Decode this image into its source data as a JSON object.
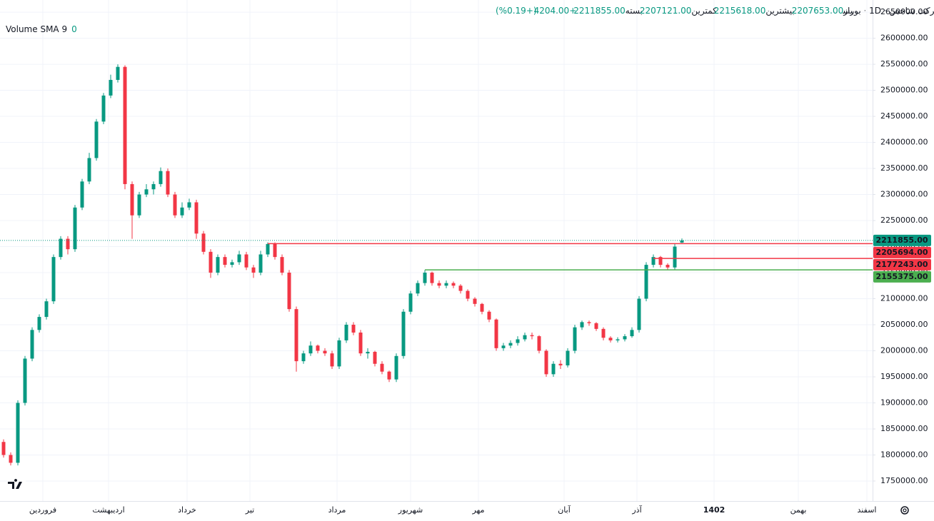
{
  "chart_data": {
    "type": "candlestick",
    "header": {
      "symbol": "شرکت شاخص",
      "interval": "1D",
      "exchange": "بورس",
      "open_name": "باز",
      "open": "2207653.00",
      "high_name": "بیشترین",
      "high": "2215618.00",
      "low_name": "کمترین",
      "low": "2207121.00",
      "close_name": "بسته",
      "close": "2211855.00",
      "change": "+4204.00",
      "change_pct": "(+0.19%)"
    },
    "indicator": {
      "name": "Volume SMA 9",
      "value": 0
    },
    "up_color": "#089981",
    "down_color": "#f23645",
    "ylim": [
      1711600,
      2673400
    ],
    "yticks": [
      {
        "value": 1750000,
        "label": "1750000.00"
      },
      {
        "value": 1800000,
        "label": "1800000.00"
      },
      {
        "value": 1850000,
        "label": "1850000.00"
      },
      {
        "value": 1900000,
        "label": "1900000.00"
      },
      {
        "value": 1950000,
        "label": "1950000.00"
      },
      {
        "value": 2000000,
        "label": "2000000.00"
      },
      {
        "value": 2050000,
        "label": "2050000.00"
      },
      {
        "value": 2100000,
        "label": "2100000.00"
      },
      {
        "value": 2150000,
        "label": "2150000.00"
      },
      {
        "value": 2200000,
        "label": "2200000.00"
      },
      {
        "value": 2250000,
        "label": "2250000.00"
      },
      {
        "value": 2300000,
        "label": "2300000.00"
      },
      {
        "value": 2350000,
        "label": "2350000.00"
      },
      {
        "value": 2400000,
        "label": "2400000.00"
      },
      {
        "value": 2450000,
        "label": "2450000.00"
      },
      {
        "value": 2500000,
        "label": "2500000.00"
      },
      {
        "value": 2550000,
        "label": "2550000.00"
      },
      {
        "value": 2600000,
        "label": "2600000.00"
      },
      {
        "value": 2650000,
        "label": "2650000.00"
      }
    ],
    "x_labels": [
      "فروردین",
      "اردیبهشت",
      "خرداد",
      "تیر",
      "مرداد",
      "شهریور",
      "مهر",
      "آبان",
      "آذر",
      "1402",
      "بهمن",
      "اسفند"
    ],
    "last_price_label": "2211855.00",
    "levels": [
      {
        "value": 2205694,
        "label": "2205694.00",
        "color": "#f23645"
      },
      {
        "value": 2177243,
        "label": "2177243.00",
        "color": "#f23645"
      },
      {
        "value": 2155375,
        "label": "2155375.00",
        "color": "#4caf50"
      }
    ],
    "candles": [
      [
        1825000,
        1830000,
        1795000,
        1800000
      ],
      [
        1800000,
        1805000,
        1780000,
        1785000
      ],
      [
        1785000,
        1905000,
        1780000,
        1900000
      ],
      [
        1900000,
        1990000,
        1895000,
        1985000
      ],
      [
        1985000,
        2045000,
        1980000,
        2040000
      ],
      [
        2040000,
        2070000,
        2035000,
        2065000
      ],
      [
        2065000,
        2100000,
        2060000,
        2095000
      ],
      [
        2095000,
        2185000,
        2090000,
        2180000
      ],
      [
        2180000,
        2220000,
        2175000,
        2215000
      ],
      [
        2215000,
        2220000,
        2185000,
        2195000
      ],
      [
        2195000,
        2280000,
        2190000,
        2275000
      ],
      [
        2275000,
        2330000,
        2270000,
        2325000
      ],
      [
        2325000,
        2380000,
        2320000,
        2370000
      ],
      [
        2370000,
        2445000,
        2365000,
        2440000
      ],
      [
        2440000,
        2495000,
        2435000,
        2490000
      ],
      [
        2490000,
        2530000,
        2485000,
        2520000
      ],
      [
        2520000,
        2550000,
        2515000,
        2545000
      ],
      [
        2545000,
        2548000,
        2310000,
        2320000
      ],
      [
        2320000,
        2325000,
        2215000,
        2260000
      ],
      [
        2260000,
        2305000,
        2255000,
        2300000
      ],
      [
        2300000,
        2320000,
        2295000,
        2310000
      ],
      [
        2310000,
        2325000,
        2300000,
        2320000
      ],
      [
        2320000,
        2352000,
        2315000,
        2345000
      ],
      [
        2345000,
        2350000,
        2295000,
        2300000
      ],
      [
        2300000,
        2305000,
        2255000,
        2260000
      ],
      [
        2260000,
        2285000,
        2255000,
        2275000
      ],
      [
        2275000,
        2292000,
        2270000,
        2285000
      ],
      [
        2285000,
        2290000,
        2215000,
        2225000
      ],
      [
        2225000,
        2230000,
        2185000,
        2190000
      ],
      [
        2190000,
        2195000,
        2140000,
        2150000
      ],
      [
        2150000,
        2185000,
        2145000,
        2180000
      ],
      [
        2180000,
        2185000,
        2160000,
        2165000
      ],
      [
        2165000,
        2175000,
        2160000,
        2170000
      ],
      [
        2170000,
        2192000,
        2165000,
        2185000
      ],
      [
        2185000,
        2190000,
        2155000,
        2160000
      ],
      [
        2160000,
        2165000,
        2140000,
        2150000
      ],
      [
        2150000,
        2192000,
        2145000,
        2185000
      ],
      [
        2185000,
        2208000,
        2180000,
        2205000
      ],
      [
        2205000,
        2208000,
        2175000,
        2180000
      ],
      [
        2180000,
        2185000,
        2145000,
        2150000
      ],
      [
        2150000,
        2155000,
        2075000,
        2080000
      ],
      [
        2080000,
        2085000,
        1960000,
        1980000
      ],
      [
        1980000,
        2000000,
        1975000,
        1995000
      ],
      [
        1995000,
        2018000,
        1990000,
        2010000
      ],
      [
        2010000,
        2012000,
        1995000,
        2000000
      ],
      [
        2000000,
        2005000,
        1990000,
        1995000
      ],
      [
        1995000,
        2000000,
        1965000,
        1970000
      ],
      [
        1970000,
        2025000,
        1965000,
        2020000
      ],
      [
        2020000,
        2055000,
        2015000,
        2050000
      ],
      [
        2050000,
        2055000,
        2030000,
        2035000
      ],
      [
        2035000,
        2040000,
        1990000,
        1995000
      ],
      [
        1995000,
        2005000,
        1985000,
        1998000
      ],
      [
        1998000,
        2000000,
        1970000,
        1975000
      ],
      [
        1975000,
        1980000,
        1955000,
        1960000
      ],
      [
        1960000,
        1962000,
        1940000,
        1945000
      ],
      [
        1945000,
        1995000,
        1940000,
        1990000
      ],
      [
        1990000,
        2080000,
        1985000,
        2075000
      ],
      [
        2075000,
        2115000,
        2070000,
        2110000
      ],
      [
        2110000,
        2135000,
        2105000,
        2130000
      ],
      [
        2130000,
        2155000,
        2125000,
        2150000
      ],
      [
        2150000,
        2152000,
        2125000,
        2130000
      ],
      [
        2130000,
        2135000,
        2120000,
        2125000
      ],
      [
        2125000,
        2135000,
        2120000,
        2130000
      ],
      [
        2130000,
        2133000,
        2120000,
        2125000
      ],
      [
        2125000,
        2128000,
        2110000,
        2115000
      ],
      [
        2115000,
        2118000,
        2095000,
        2100000
      ],
      [
        2100000,
        2103000,
        2085000,
        2090000
      ],
      [
        2090000,
        2092000,
        2070000,
        2075000
      ],
      [
        2075000,
        2078000,
        2055000,
        2060000
      ],
      [
        2060000,
        2062000,
        2000000,
        2005000
      ],
      [
        2005000,
        2015000,
        2000000,
        2010000
      ],
      [
        2010000,
        2020000,
        2005000,
        2015000
      ],
      [
        2015000,
        2028000,
        2010000,
        2022000
      ],
      [
        2022000,
        2035000,
        2018000,
        2030000
      ],
      [
        2030000,
        2035000,
        2022000,
        2028000
      ],
      [
        2028000,
        2030000,
        1995000,
        2000000
      ],
      [
        2000000,
        2003000,
        1950000,
        1955000
      ],
      [
        1955000,
        1980000,
        1950000,
        1975000
      ],
      [
        1975000,
        1982000,
        1965000,
        1972000
      ],
      [
        1972000,
        2005000,
        1968000,
        2000000
      ],
      [
        2000000,
        2050000,
        1995000,
        2045000
      ],
      [
        2045000,
        2058000,
        2040000,
        2055000
      ],
      [
        2055000,
        2058000,
        2048000,
        2053000
      ],
      [
        2053000,
        2055000,
        2038000,
        2042000
      ],
      [
        2042000,
        2045000,
        2020000,
        2025000
      ],
      [
        2025000,
        2028000,
        2016000,
        2020000
      ],
      [
        2020000,
        2026000,
        2016000,
        2022000
      ],
      [
        2022000,
        2032000,
        2018000,
        2028000
      ],
      [
        2028000,
        2045000,
        2025000,
        2040000
      ],
      [
        2040000,
        2105000,
        2035000,
        2100000
      ],
      [
        2100000,
        2170000,
        2095000,
        2165000
      ],
      [
        2165000,
        2185000,
        2160000,
        2180000
      ],
      [
        2180000,
        2182000,
        2160000,
        2165000
      ],
      [
        2165000,
        2168000,
        2155000,
        2160000
      ],
      [
        2160000,
        2205000,
        2155000,
        2200000
      ],
      [
        2207653,
        2215618,
        2207121,
        2211855
      ]
    ]
  }
}
